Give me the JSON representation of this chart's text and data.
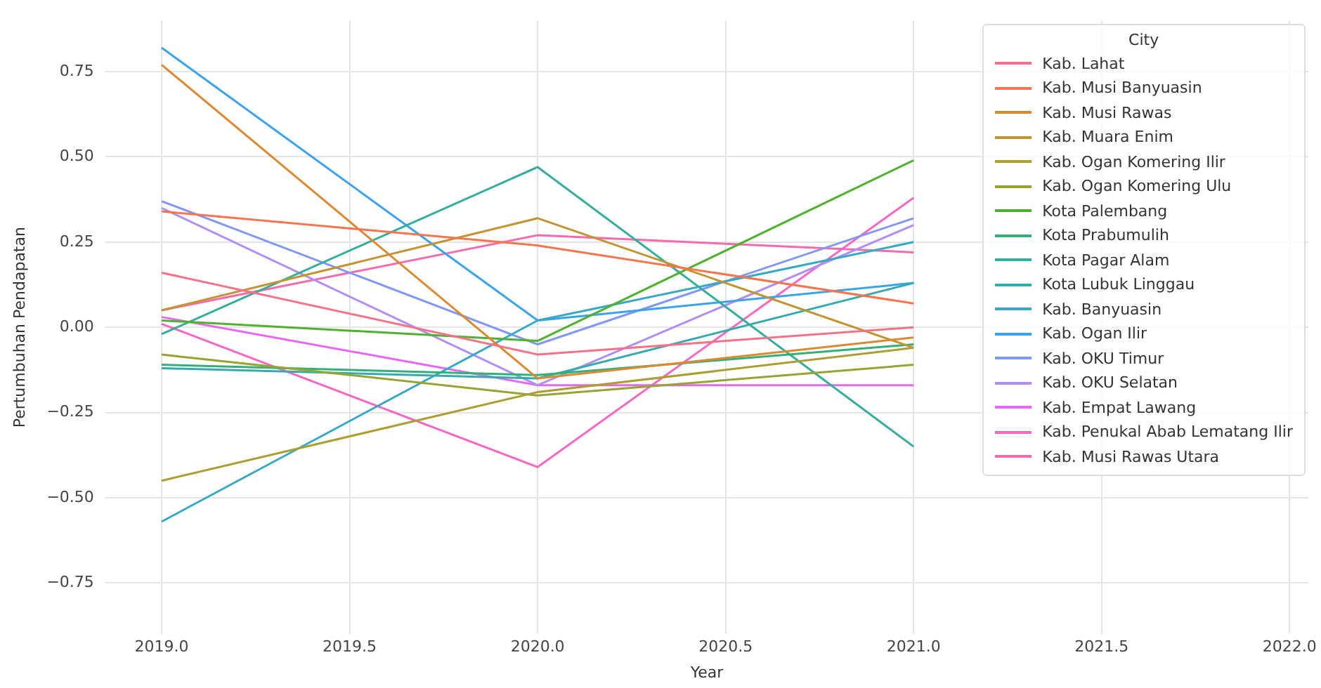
{
  "chart_data": {
    "type": "line",
    "xlabel": "Year",
    "ylabel": "Pertumbuhan Pendapatan",
    "legend_title": "City",
    "legend": "top right",
    "grid": true,
    "marker": "none",
    "line_style": "solid",
    "x": [
      2019,
      2020,
      2021
    ],
    "xlim": [
      2018.85,
      2022.05
    ],
    "xticks": [
      {
        "value": 2019,
        "label": "2019.0"
      },
      {
        "value": 2019.5,
        "label": "2019.5"
      },
      {
        "value": 2020,
        "label": "2020.0"
      },
      {
        "value": 2020.5,
        "label": "2020.5"
      },
      {
        "value": 2021,
        "label": "2021.0"
      },
      {
        "value": 2021.5,
        "label": "2021.5"
      },
      {
        "value": 2022,
        "label": "2022.0"
      }
    ],
    "ylim": [
      -0.9,
      0.9
    ],
    "yticks": [
      {
        "value": -0.75,
        "label": "−0.75"
      },
      {
        "value": -0.5,
        "label": "−0.50"
      },
      {
        "value": -0.25,
        "label": "−0.25"
      },
      {
        "value": 0,
        "label": "0.00"
      },
      {
        "value": 0.25,
        "label": "0.25"
      },
      {
        "value": 0.5,
        "label": "0.50"
      },
      {
        "value": 0.75,
        "label": "0.75"
      }
    ],
    "series": [
      {
        "name": "Kab. Lahat",
        "color": "#f77189",
        "values": [
          0.16,
          -0.08,
          0.0
        ]
      },
      {
        "name": "Kab. Musi Banyuasin",
        "color": "#f7754f",
        "values": [
          0.34,
          0.24,
          0.07
        ]
      },
      {
        "name": "Kab. Musi Rawas",
        "color": "#dc8932",
        "values": [
          0.77,
          -0.15,
          -0.03
        ]
      },
      {
        "name": "Kab. Muara Enim",
        "color": "#c39532",
        "values": [
          0.05,
          0.32,
          -0.06
        ]
      },
      {
        "name": "Kab. Ogan Komering Ilir",
        "color": "#ae9d31",
        "values": [
          -0.45,
          -0.19,
          -0.06
        ]
      },
      {
        "name": "Kab. Ogan Komering Ulu",
        "color": "#97a431",
        "values": [
          -0.08,
          -0.2,
          -0.11
        ]
      },
      {
        "name": "Kota Palembang",
        "color": "#50b131",
        "values": [
          0.02,
          -0.04,
          0.49
        ]
      },
      {
        "name": "Kota Prabumulih",
        "color": "#33b07a",
        "values": [
          -0.11,
          -0.14,
          -0.05
        ]
      },
      {
        "name": "Kota Pagar Alam",
        "color": "#35ad9c",
        "values": [
          -0.02,
          0.47,
          -0.35
        ]
      },
      {
        "name": "Kota Lubuk Linggau",
        "color": "#36abae",
        "values": [
          -0.12,
          -0.15,
          0.13
        ]
      },
      {
        "name": "Kab. Banyuasin",
        "color": "#38a9c5",
        "values": [
          -0.57,
          0.02,
          0.25
        ]
      },
      {
        "name": "Kab. Ogan Ilir",
        "color": "#3ba3ec",
        "values": [
          0.82,
          0.02,
          0.13
        ]
      },
      {
        "name": "Kab. OKU Timur",
        "color": "#8197f4",
        "values": [
          0.37,
          -0.05,
          0.32
        ]
      },
      {
        "name": "Kab. OKU Selatan",
        "color": "#b08ef4",
        "values": [
          0.35,
          -0.17,
          0.3
        ]
      },
      {
        "name": "Kab. Empat Lawang",
        "color": "#e866f4",
        "values": [
          0.03,
          -0.17,
          -0.17
        ]
      },
      {
        "name": "Kab. Penukal Abab Lematang Ilir",
        "color": "#f668c2",
        "values": [
          0.01,
          -0.41,
          0.38
        ]
      },
      {
        "name": "Kab. Musi Rawas Utara",
        "color": "#f66bad",
        "values": [
          0.05,
          0.27,
          0.22
        ]
      }
    ]
  }
}
